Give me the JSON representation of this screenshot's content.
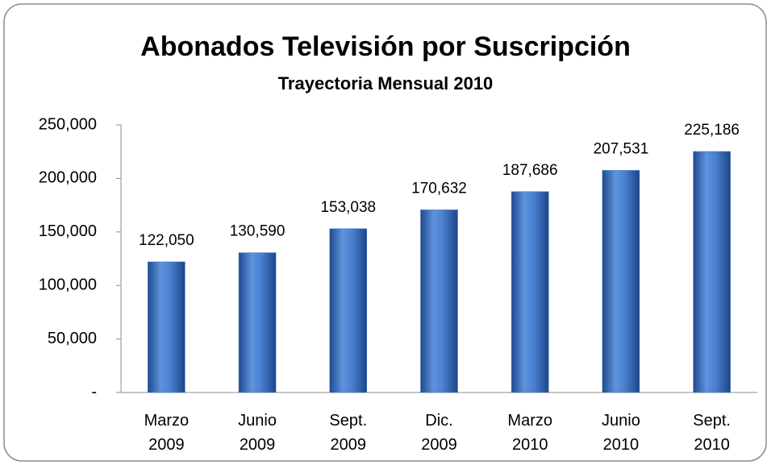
{
  "chart_data": {
    "type": "bar",
    "title": "Abonados Televisión por Suscripción",
    "subtitle": "Trayectoria Mensual 2010",
    "categories": [
      "Marzo 2009",
      "Junio 2009",
      "Sept. 2009",
      "Dic. 2009",
      "Marzo 2010",
      "Junio 2010",
      "Sept. 2010"
    ],
    "values": [
      122050,
      130590,
      153038,
      170632,
      187686,
      207531,
      225186
    ],
    "value_labels": [
      "122,050",
      "130,590",
      "153,038",
      "170,632",
      "187,686",
      "207,531",
      "225,186"
    ],
    "color": "#3f73c2",
    "ylim": [
      0,
      250000
    ],
    "yticks": [
      {
        "value": 0,
        "label": "-"
      },
      {
        "value": 50000,
        "label": "50,000"
      },
      {
        "value": 100000,
        "label": "100,000"
      },
      {
        "value": 150000,
        "label": "150,000"
      },
      {
        "value": 200000,
        "label": "200,000"
      },
      {
        "value": 250000,
        "label": "250,000"
      }
    ],
    "grid": false
  }
}
